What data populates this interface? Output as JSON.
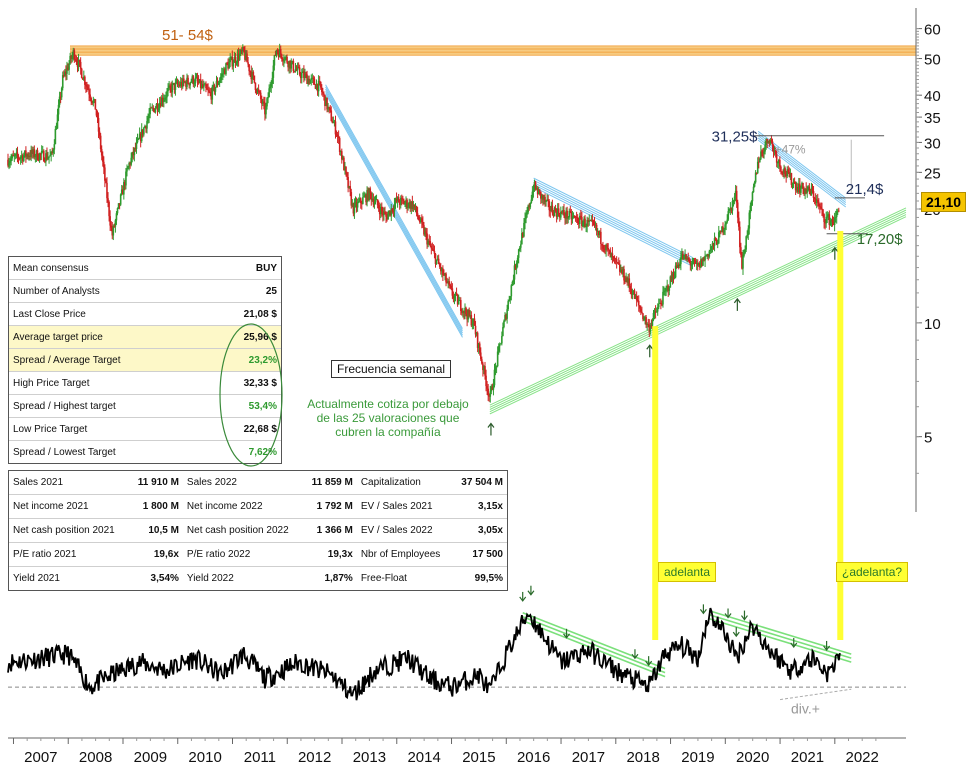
{
  "chart_data": [
    {
      "type": "line",
      "series": [
        {
          "name": "",
          "x_start": 2006.9,
          "x_end": 2022.1,
          "points": [
            [
              2006.9,
              27
            ],
            [
              2007.3,
              28
            ],
            [
              2007.7,
              27.5
            ],
            [
              2007.9,
              44
            ],
            [
              2008.1,
              52
            ],
            [
              2008.5,
              37
            ],
            [
              2008.8,
              17
            ],
            [
              2009.1,
              26
            ],
            [
              2009.5,
              36
            ],
            [
              2009.9,
              42
            ],
            [
              2010.3,
              44
            ],
            [
              2010.6,
              40
            ],
            [
              2010.9,
              48
            ],
            [
              2011.2,
              52
            ],
            [
              2011.6,
              36
            ],
            [
              2011.8,
              53
            ],
            [
              2012.2,
              46
            ],
            [
              2012.6,
              42
            ],
            [
              2012.9,
              32
            ],
            [
              2013.2,
              20
            ],
            [
              2013.5,
              22
            ],
            [
              2013.8,
              19
            ],
            [
              2014.0,
              21
            ],
            [
              2014.3,
              20.5
            ],
            [
              2014.6,
              16
            ],
            [
              2015.0,
              12
            ],
            [
              2015.4,
              10
            ],
            [
              2015.7,
              6.3
            ],
            [
              2015.9,
              9
            ],
            [
              2016.2,
              15
            ],
            [
              2016.5,
              23
            ],
            [
              2016.8,
              20
            ],
            [
              2017.2,
              19
            ],
            [
              2017.6,
              18
            ],
            [
              2017.9,
              15
            ],
            [
              2018.2,
              13
            ],
            [
              2018.6,
              9.7
            ],
            [
              2018.9,
              12
            ],
            [
              2019.2,
              15
            ],
            [
              2019.5,
              14
            ],
            [
              2019.9,
              17
            ],
            [
              2020.2,
              22
            ],
            [
              2020.3,
              14
            ],
            [
              2020.6,
              27
            ],
            [
              2020.8,
              31
            ],
            [
              2021.0,
              26
            ],
            [
              2021.3,
              23
            ],
            [
              2021.6,
              22
            ],
            [
              2021.8,
              19
            ],
            [
              2022.0,
              18.5
            ],
            [
              2022.1,
              21.1
            ]
          ]
        }
      ],
      "x_tick_labels": [
        "2007",
        "2008",
        "2009",
        "2010",
        "2011",
        "2012",
        "2013",
        "2014",
        "2015",
        "2016",
        "2017",
        "2018",
        "2019",
        "2020",
        "2021",
        "2022"
      ],
      "y_tick_labels": [
        "60",
        "50",
        "40",
        "35",
        "30",
        "25",
        "20",
        "10",
        "5"
      ],
      "y_ticks": [
        60,
        50,
        40,
        35,
        30,
        25,
        20,
        10,
        5
      ],
      "ylim": [
        3.4,
        64
      ],
      "xlim": [
        2006.9,
        2023.3
      ],
      "log_scale": true,
      "last_price_label": "21,10",
      "resistance_band": {
        "low": 51,
        "high": 54,
        "label": "51- 54$"
      },
      "annotations": [
        {
          "text": "31,25$",
          "x": 2020.55,
          "y": 31.25
        },
        {
          "text": "+47%",
          "x": 2020.8,
          "y": 28.5
        },
        {
          "text": "21,4$",
          "x": 2022.1,
          "y": 21.4
        },
        {
          "text": "17,20$",
          "x": 2022.2,
          "y": 17.2
        }
      ],
      "trendlines": [
        {
          "kind": "down",
          "from": [
            2012.7,
            41.5
          ],
          "to": [
            2015.2,
            9.4
          ]
        },
        {
          "kind": "down",
          "from": [
            2016.5,
            23.5
          ],
          "to": [
            2019.4,
            14.5
          ]
        },
        {
          "kind": "down",
          "from": [
            2020.6,
            31.25
          ],
          "to": [
            2022.2,
            20.8
          ]
        },
        {
          "kind": "up",
          "from": [
            2015.7,
            5.9
          ],
          "to": [
            2023.3,
            19.6
          ]
        }
      ],
      "support_lows": [
        [
          2015.72,
          5.9
        ],
        [
          2018.62,
          9.5
        ],
        [
          2020.22,
          12.6
        ],
        [
          2022.0,
          17.2
        ]
      ]
    },
    {
      "type": "line",
      "x_tick_labels": [
        "2007",
        "2008",
        "2009",
        "2010",
        "2011",
        "2012",
        "2013",
        "2014",
        "2015",
        "2016",
        "2017",
        "2018",
        "2019",
        "2020",
        "2021",
        "2022"
      ],
      "series": [
        {
          "name": "",
          "x_start": 2006.9,
          "x_end": 2022.1,
          "points": [
            [
              2006.9,
              0
            ],
            [
              2007.5,
              0.1
            ],
            [
              2008.0,
              0.2
            ],
            [
              2008.4,
              -0.6
            ],
            [
              2008.8,
              -0.3
            ],
            [
              2009.3,
              0
            ],
            [
              2009.8,
              -0.2
            ],
            [
              2010.3,
              0.1
            ],
            [
              2010.8,
              -0.3
            ],
            [
              2011.2,
              0.2
            ],
            [
              2011.6,
              -0.4
            ],
            [
              2012.2,
              0
            ],
            [
              2012.8,
              -0.3
            ],
            [
              2013.2,
              -0.8
            ],
            [
              2013.6,
              -0.2
            ],
            [
              2014.2,
              0.1
            ],
            [
              2014.6,
              -0.4
            ],
            [
              2015.0,
              -0.6
            ],
            [
              2015.5,
              -0.3
            ],
            [
              2015.7,
              -0.7
            ],
            [
              2016.0,
              0.2
            ],
            [
              2016.4,
              1.2
            ],
            [
              2016.7,
              0.6
            ],
            [
              2017.0,
              0
            ],
            [
              2017.5,
              0.3
            ],
            [
              2018.0,
              -0.2
            ],
            [
              2018.6,
              -0.6
            ],
            [
              2018.9,
              0.2
            ],
            [
              2019.2,
              0.4
            ],
            [
              2019.5,
              0.1
            ],
            [
              2019.7,
              1.2
            ],
            [
              2020.0,
              0.7
            ],
            [
              2020.2,
              0.1
            ],
            [
              2020.5,
              0.9
            ],
            [
              2020.8,
              0.3
            ],
            [
              2021.2,
              -0.2
            ],
            [
              2021.6,
              0.1
            ],
            [
              2021.9,
              -0.3
            ],
            [
              2022.1,
              0.3
            ]
          ]
        }
      ],
      "ylim": [
        -1.2,
        1.6
      ],
      "baseline": -0.6,
      "annotations": [
        {
          "text": "div.+",
          "x": 2021.2,
          "y": -0.95
        }
      ],
      "trendlines": [
        {
          "kind": "down",
          "from": [
            2016.3,
            1.1
          ],
          "to": [
            2018.9,
            -0.25
          ]
        },
        {
          "kind": "down",
          "from": [
            2019.7,
            1.15
          ],
          "to": [
            2022.3,
            0.1
          ]
        },
        {
          "kind": "up",
          "from": [
            2021.0,
            -0.9
          ],
          "to": [
            2022.3,
            -0.65
          ]
        }
      ],
      "peak_markers": [
        2016.3,
        2016.45,
        2017.1,
        2018.35,
        2018.6,
        2019.6,
        2020.05,
        2020.2,
        2020.35,
        2021.25,
        2021.85
      ]
    }
  ],
  "consensus_table": [
    {
      "label": "Mean consensus",
      "value": "BUY"
    },
    {
      "label": "Number of Analysts",
      "value": "25"
    },
    {
      "label": "Last Close Price",
      "value": "21,08 $"
    },
    {
      "label": "Average target price",
      "value": "25,96 $"
    },
    {
      "label": "Spread / Average Target",
      "value": "23,2%"
    },
    {
      "label": "High Price Target",
      "value": "32,33 $"
    },
    {
      "label": "Spread / Highest target",
      "value": "53,4%"
    },
    {
      "label": "Low Price Target",
      "value": "22,68 $"
    },
    {
      "label": "Spread / Lowest Target",
      "value": "7,62%"
    }
  ],
  "fundamentals_table": [
    [
      {
        "l": "Sales 2021",
        "v": "11 910 M"
      },
      {
        "l": "Sales 2022",
        "v": "11 859 M"
      },
      {
        "l": "Capitalization",
        "v": "37 504 M"
      }
    ],
    [
      {
        "l": "Net income 2021",
        "v": "1 800 M"
      },
      {
        "l": "Net income 2022",
        "v": "1 792 M"
      },
      {
        "l": "EV / Sales 2021",
        "v": "3,15x"
      }
    ],
    [
      {
        "l": "Net cash position 2021",
        "v": "10,5 M"
      },
      {
        "l": "Net cash position 2022",
        "v": "1 366 M"
      },
      {
        "l": "EV / Sales 2022",
        "v": "3,05x"
      }
    ],
    [
      {
        "l": "P/E ratio 2021",
        "v": "19,6x"
      },
      {
        "l": "P/E ratio 2022",
        "v": "19,3x"
      },
      {
        "l": "Nbr of Employees",
        "v": "17 500"
      }
    ],
    [
      {
        "l": "Yield 2021",
        "v": "3,54%"
      },
      {
        "l": "Yield 2022",
        "v": "1,87%"
      },
      {
        "l": "Free-Float",
        "v": "99,5%"
      }
    ]
  ],
  "freq_label": "Frecuencia semanal",
  "note": "Actualmente cotiza por debajo de las 25 valoraciones que cubren la compañía",
  "callouts": {
    "adelanta": "adelanta",
    "adelanta_q": "¿adelanta?"
  },
  "colors": {
    "up": "#2e9a2e",
    "down": "#d02020",
    "band": "#f6c26b",
    "blue_trend": "#6fc0ee",
    "green_trend": "#7be07b",
    "yellow": "#ffff33"
  }
}
